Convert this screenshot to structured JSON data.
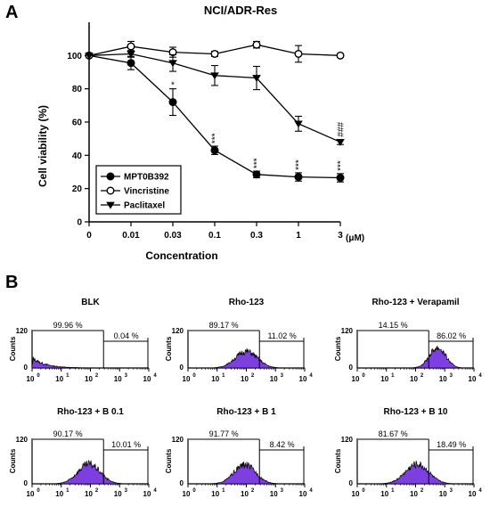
{
  "panel_a": {
    "letter": "A",
    "chart_data": {
      "type": "line",
      "title": "NCI/ADR-Res",
      "xlabel": "Concentration",
      "ylabel": "Cell viability (%)",
      "x_unit": "(μM)",
      "categories": [
        "0",
        "0.01",
        "0.03",
        "0.1",
        "0.3",
        "1",
        "3"
      ],
      "ylim": [
        0,
        120
      ],
      "yticks": [
        0,
        20,
        40,
        60,
        80,
        100
      ],
      "legend_position": "bottom-left",
      "series": [
        {
          "name": "MPT0B392",
          "marker": "filled-circle",
          "values": [
            100,
            95.5,
            72,
            43,
            28.5,
            27,
            26.5
          ],
          "errors": [
            0,
            4,
            8,
            2.5,
            2,
            2.5,
            2.5
          ],
          "annotations": [
            "",
            "",
            "*",
            "***",
            "***",
            "***",
            "***"
          ]
        },
        {
          "name": "Vincristine",
          "marker": "open-circle",
          "values": [
            100,
            105.5,
            102,
            101,
            106.5,
            101,
            100
          ],
          "errors": [
            0,
            3,
            3,
            1.5,
            2,
            5,
            1
          ],
          "annotations": [
            "",
            "",
            "",
            "",
            "",
            "",
            ""
          ]
        },
        {
          "name": "Paclitaxel",
          "marker": "filled-triangle-down",
          "values": [
            100,
            101,
            95.5,
            88,
            86.5,
            59,
            48
          ],
          "errors": [
            0,
            2,
            5,
            6,
            7,
            4.5,
            1.5
          ],
          "annotations": [
            "",
            "",
            "",
            "",
            "",
            "",
            "###"
          ]
        }
      ]
    }
  },
  "panel_b": {
    "letter": "B",
    "chart_data": [
      {
        "type": "area",
        "title": "BLK",
        "ylabel": "Counts",
        "yticks": [
          "0",
          "120"
        ],
        "xscale": "log",
        "xlim": [
          1,
          10000
        ],
        "gate_left_label": "99.96 %",
        "gate_right_label": "0.04 %",
        "peak_log": 0.05,
        "peak_height": 32,
        "spread": 0.45,
        "fill_color": "#7d3fe0"
      },
      {
        "type": "area",
        "title": "Rho-123",
        "ylabel": "Counts",
        "yticks": [
          "0",
          "120"
        ],
        "xscale": "log",
        "xlim": [
          1,
          10000
        ],
        "gate_left_label": "89.17 %",
        "gate_right_label": "11.02 %",
        "peak_log": 2.0,
        "peak_height": 52,
        "spread": 0.38,
        "fill_color": "#7d3fe0"
      },
      {
        "type": "area",
        "title": "Rho-123 + Verapamil",
        "ylabel": "Counts",
        "yticks": [
          "0",
          "120"
        ],
        "xscale": "log",
        "xlim": [
          1,
          10000
        ],
        "gate_left_label": "14.15 %",
        "gate_right_label": "86.02 %",
        "peak_log": 2.75,
        "peak_height": 63,
        "spread": 0.28,
        "fill_color": "#7d3fe0"
      },
      {
        "type": "area",
        "title": "Rho-123 + B 0.1",
        "ylabel": "Counts",
        "yticks": [
          "0",
          "120"
        ],
        "xscale": "log",
        "xlim": [
          1,
          10000
        ],
        "gate_left_label": "90.17 %",
        "gate_right_label": "10.01 %",
        "peak_log": 1.95,
        "peak_height": 52,
        "spread": 0.38,
        "fill_color": "#7d3fe0"
      },
      {
        "type": "area",
        "title": "Rho-123 + B 1",
        "ylabel": "Counts",
        "yticks": [
          "0",
          "120"
        ],
        "xscale": "log",
        "xlim": [
          1,
          10000
        ],
        "gate_left_label": "91.77 %",
        "gate_right_label": "8.42 %",
        "peak_log": 1.95,
        "peak_height": 50,
        "spread": 0.37,
        "fill_color": "#7d3fe0"
      },
      {
        "type": "area",
        "title": "Rho-123 + B 10",
        "ylabel": "Counts",
        "yticks": [
          "0",
          "120"
        ],
        "xscale": "log",
        "xlim": [
          1,
          10000
        ],
        "gate_left_label": "81.67 %",
        "gate_right_label": "18.49 %",
        "peak_log": 2.05,
        "peak_height": 52,
        "spread": 0.4,
        "fill_color": "#7d3fe0"
      }
    ]
  }
}
